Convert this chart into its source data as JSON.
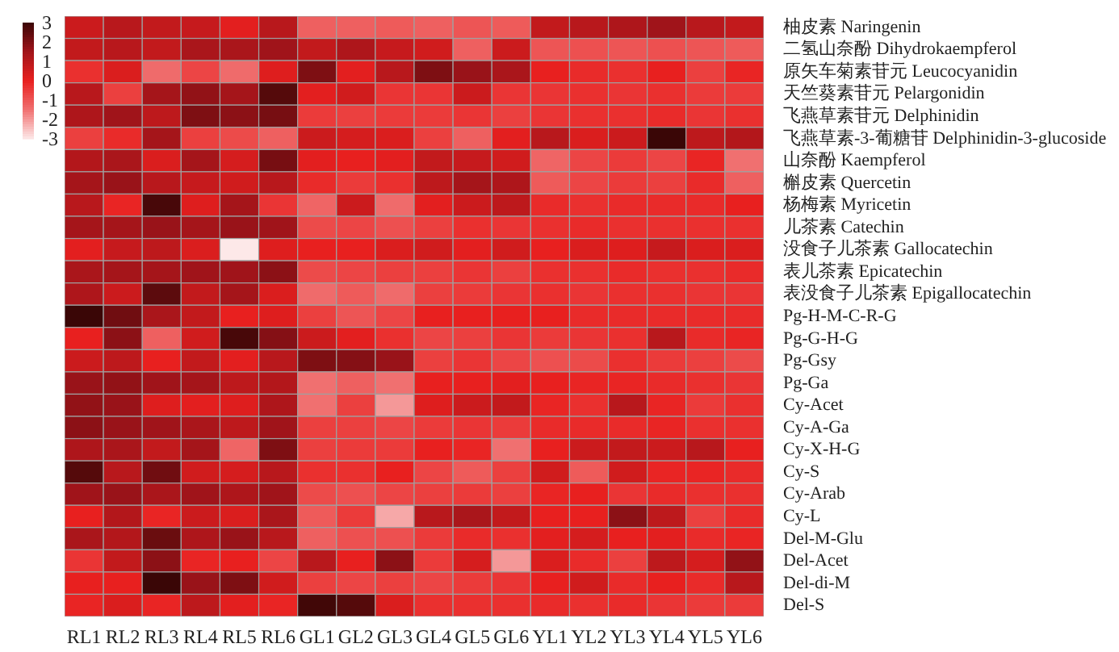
{
  "chart_data": {
    "type": "heatmap",
    "categories": [
      "RL1",
      "RL2",
      "RL3",
      "RL4",
      "RL5",
      "RL6",
      "GL1",
      "GL2",
      "GL3",
      "GL4",
      "GL5",
      "GL6",
      "YL1",
      "YL2",
      "YL3",
      "YL4",
      "YL5",
      "YL6"
    ],
    "y_categories": [
      "柚皮素 Naringenin",
      "二氢山奈酚 Dihydrokaempferol",
      "原矢车菊素苷元 Leucocyanidin",
      "天竺葵素苷元 Pelargonidin",
      "飞燕草素苷元 Delphinidin",
      "飞燕草素-3-葡糖苷 Delphinidin-3-glucoside",
      "山奈酚 Kaempferol",
      "槲皮素 Quercetin",
      "杨梅素 Myricetin",
      "儿茶素 Catechin",
      "没食子儿茶素 Gallocatechin",
      "表儿茶素 Epicatechin",
      "表没食子儿茶素 Epigallocatechin",
      "Pg-H-M-C-R-G",
      "Pg-G-H-G",
      "Pg-Gsy",
      "Pg-Ga",
      "Cy-Acet",
      "Cy-A-Ga",
      "Cy-X-H-G",
      "Cy-S",
      "Cy-Arab",
      "Cy-L",
      "Del-M-Glu",
      "Del-Acet",
      "Del-di-M",
      "Del-S"
    ],
    "cells": [
      [
        0.6,
        1.0,
        0.8,
        0.7,
        0.1,
        1.0,
        -1.2,
        -1.2,
        -1.1,
        -1.2,
        -1.0,
        -1.1,
        0.8,
        1.0,
        1.2,
        1.5,
        1.0,
        0.8
      ],
      [
        0.8,
        1.0,
        0.8,
        1.3,
        1.3,
        1.5,
        0.8,
        1.2,
        0.7,
        0.5,
        -1.2,
        0.6,
        -1.0,
        -0.9,
        -1.0,
        -0.9,
        -1.0,
        -1.1
      ],
      [
        -0.3,
        0.3,
        -1.4,
        -0.7,
        -1.4,
        0.2,
        2.0,
        0.1,
        1.0,
        2.0,
        1.6,
        1.3,
        0,
        -0.2,
        -0.3,
        0,
        -0.6,
        -0.1
      ],
      [
        1.0,
        -0.6,
        1.4,
        1.7,
        1.4,
        2.6,
        0.1,
        0.5,
        -0.4,
        -0.4,
        0.6,
        -0.4,
        -0.4,
        -0.3,
        -0.4,
        -0.3,
        -0.5,
        -0.5
      ],
      [
        1.2,
        1.5,
        0.9,
        2.0,
        1.8,
        2.1,
        -0.5,
        -0.6,
        -0.5,
        -0.5,
        -0.4,
        -0.6,
        -0.4,
        -0.3,
        -0.3,
        -0.2,
        -0.4,
        -0.3
      ],
      [
        -0.6,
        -0.2,
        1.4,
        -0.6,
        -0.8,
        -1.2,
        0.6,
        0.4,
        0.3,
        -0.6,
        -1.2,
        0.1,
        1.0,
        0.3,
        0.6,
        3.0,
        0.9,
        1.1
      ],
      [
        1.1,
        1.3,
        0.3,
        1.4,
        0.4,
        2.1,
        0.1,
        0,
        0.1,
        0.8,
        0.7,
        0.5,
        -1.3,
        -0.7,
        -0.5,
        -0.7,
        -0.1,
        -1.5
      ],
      [
        1.4,
        1.6,
        1.0,
        0.7,
        0.5,
        1.0,
        -0.2,
        -0.5,
        -0.3,
        0.9,
        1.4,
        1.2,
        -1.1,
        -0.7,
        -0.5,
        -0.6,
        -0.2,
        -1.2
      ],
      [
        1.0,
        -0.1,
        2.8,
        0.2,
        1.4,
        -0.4,
        -1.3,
        0.6,
        -1.4,
        0.1,
        0.6,
        0.9,
        -0.2,
        -0.3,
        -0.2,
        -0.2,
        -0.2,
        0
      ],
      [
        1.4,
        1.4,
        1.6,
        1.4,
        1.6,
        1.5,
        -0.8,
        -0.7,
        -0.9,
        -0.6,
        -0.3,
        -0.4,
        -0.3,
        -0.2,
        -0.3,
        -0.3,
        -0.3,
        -0.3
      ],
      [
        0.1,
        0.7,
        0.9,
        0.3,
        -3,
        0.2,
        0,
        0,
        0.3,
        0.5,
        0.1,
        0.5,
        0,
        0.3,
        0.2,
        0.7,
        0.3,
        0.3
      ],
      [
        1.3,
        1.4,
        1.4,
        1.5,
        1.5,
        1.8,
        -0.8,
        -0.7,
        -0.6,
        -0.6,
        -0.4,
        -0.6,
        -0.3,
        -0.3,
        -0.2,
        -0.3,
        -0.3,
        -0.2
      ],
      [
        1.2,
        0.6,
        2.5,
        0.8,
        1.4,
        0.3,
        -1.4,
        -1.1,
        -1.4,
        -0.6,
        -0.5,
        -0.4,
        -0.3,
        -0.4,
        -0.3,
        -0.3,
        -0.4,
        -0.4
      ],
      [
        3.0,
        2.2,
        1.3,
        0.8,
        0,
        0.2,
        -0.6,
        -1.0,
        -0.7,
        0,
        0,
        0,
        0,
        -0.2,
        -0.2,
        -0.2,
        -0.2,
        -0.2
      ],
      [
        0,
        1.8,
        -1.2,
        0.5,
        2.8,
        1.9,
        0.6,
        0.1,
        -0.3,
        -0.7,
        -0.6,
        -0.4,
        -0.5,
        -0.4,
        -0.3,
        1.0,
        -0.2,
        -0.1
      ],
      [
        0.6,
        0.9,
        0,
        0.8,
        0.1,
        1.0,
        2.0,
        1.9,
        1.6,
        -0.6,
        -0.4,
        -0.7,
        -0.9,
        -0.8,
        -0.3,
        -0.5,
        -0.6,
        -0.8
      ],
      [
        1.6,
        1.7,
        1.5,
        1.4,
        0.9,
        1.1,
        -1.5,
        -1.2,
        -1.5,
        0,
        0,
        0.1,
        0,
        -0.1,
        -0.1,
        -0.2,
        -0.3,
        -0.4
      ],
      [
        1.7,
        1.6,
        0.2,
        0.1,
        0.2,
        1.2,
        -1.5,
        -0.6,
        -2.0,
        0.2,
        0.6,
        0.8,
        -0.1,
        -0.3,
        1.0,
        -0.1,
        -0.5,
        -0.3
      ],
      [
        1.8,
        1.6,
        1.5,
        1.3,
        0.9,
        1.5,
        -0.6,
        -0.6,
        -0.7,
        -0.5,
        -0.4,
        -0.5,
        -0.2,
        -0.2,
        -0.2,
        -0.1,
        -0.3,
        -0.3
      ],
      [
        1.2,
        1.3,
        0.8,
        1.4,
        -1.3,
        2.0,
        -0.6,
        -0.5,
        -0.5,
        0,
        -0.1,
        -1.5,
        0,
        0.6,
        0.8,
        0.6,
        1.0,
        0
      ],
      [
        2.6,
        1.0,
        2.2,
        0.5,
        0.4,
        1.0,
        -0.3,
        -0.3,
        0,
        -0.7,
        -1.1,
        -0.6,
        0.5,
        -1.1,
        0.5,
        -0.1,
        -0.1,
        -0.2
      ],
      [
        1.5,
        1.6,
        1.3,
        1.5,
        1.2,
        1.5,
        -0.8,
        -0.9,
        -0.7,
        -0.6,
        -0.5,
        -0.6,
        -0.1,
        0,
        -0.4,
        -0.2,
        -0.3,
        -0.3
      ],
      [
        0,
        1.1,
        -0.1,
        0.6,
        0.3,
        1.3,
        -1.1,
        -0.5,
        -2.2,
        1.0,
        1.3,
        0.8,
        0,
        0,
        1.8,
        0.9,
        -0.6,
        -0.2
      ],
      [
        1.3,
        1.1,
        2.3,
        1.2,
        1.6,
        1.0,
        -1.2,
        -0.9,
        -0.9,
        -0.5,
        -0.2,
        -0.3,
        0.1,
        0.4,
        0,
        0.1,
        -0.2,
        -0.1
      ],
      [
        -0.4,
        0.8,
        1.8,
        -0.1,
        0,
        -0.7,
        1.0,
        0,
        1.8,
        -0.5,
        0.4,
        -2.0,
        0.3,
        -0.2,
        -0.6,
        0.9,
        0.4,
        1.7
      ],
      [
        0,
        0,
        3.0,
        1.6,
        2.0,
        0.5,
        -0.6,
        -0.7,
        -0.6,
        -0.7,
        -0.5,
        -0.4,
        0,
        0.5,
        -0.2,
        0,
        -0.2,
        1.0
      ],
      [
        -0.1,
        0.3,
        -0.1,
        0.9,
        0.1,
        -0.1,
        2.9,
        2.6,
        0.3,
        -0.3,
        -0.3,
        -0.3,
        -0.2,
        -0.3,
        -0.2,
        -0.4,
        -0.5,
        -0.5
      ]
    ],
    "clim": [
      -3,
      3
    ],
    "cticks": [
      3,
      2,
      1,
      0,
      -1,
      -2,
      -3
    ]
  }
}
